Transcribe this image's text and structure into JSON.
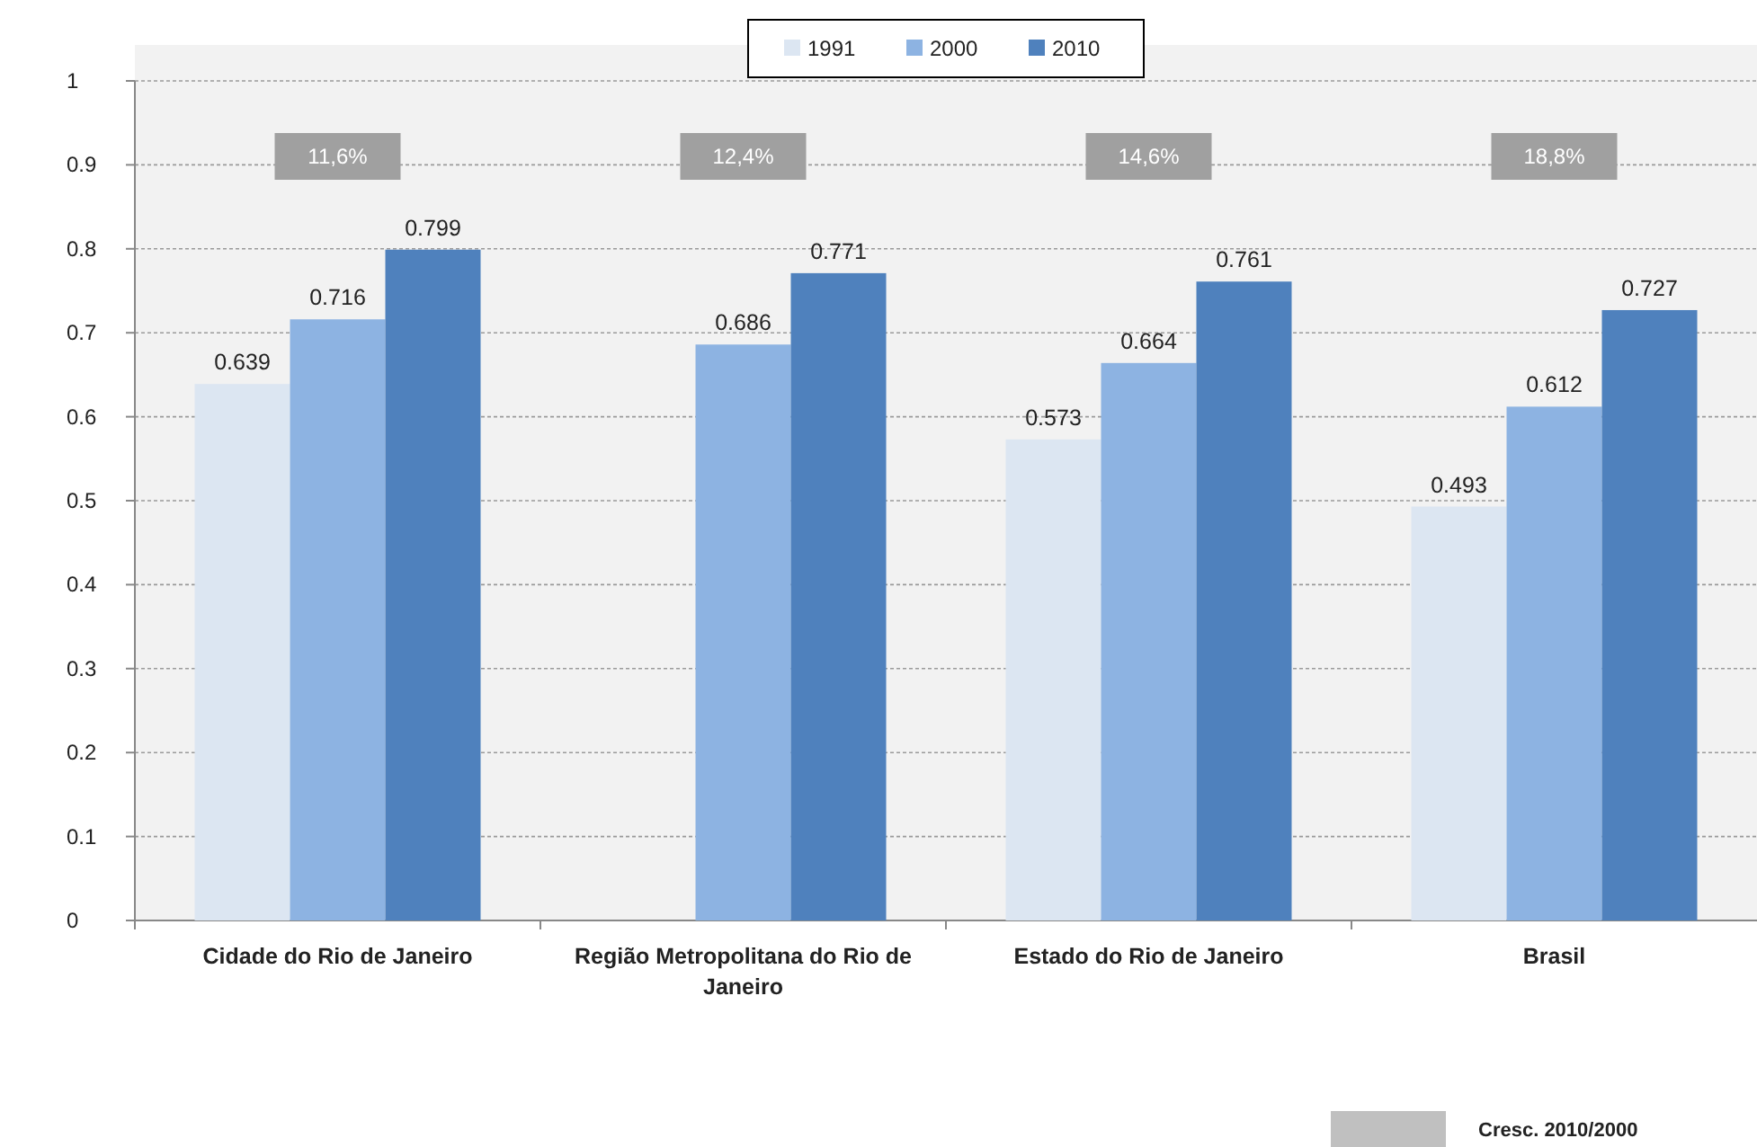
{
  "chart_data": {
    "type": "bar",
    "categories": [
      "Cidade do Rio de Janeiro",
      "Região Metropolitana do Rio de Janeiro",
      "Estado do Rio de Janeiro",
      "Brasil"
    ],
    "series": [
      {
        "name": "1991",
        "color": "#dce6f2",
        "values": [
          0.639,
          null,
          0.573,
          0.493
        ]
      },
      {
        "name": "2000",
        "color": "#8db3e2",
        "values": [
          0.716,
          0.686,
          0.664,
          0.612
        ]
      },
      {
        "name": "2010",
        "color": "#4f81bd",
        "values": [
          0.799,
          0.771,
          0.761,
          0.727
        ]
      }
    ],
    "ylim": [
      0,
      1
    ],
    "yticks": [
      0,
      0.1,
      0.2,
      0.3,
      0.4,
      0.5,
      0.6,
      0.7,
      0.8,
      0.9,
      1
    ],
    "grid": "y",
    "legend": "top",
    "data_labels": true,
    "annotations": [
      "11,6%",
      "12,4%",
      "14,6%",
      "18,8%",
      "Cresc. 2010/2000"
    ]
  }
}
